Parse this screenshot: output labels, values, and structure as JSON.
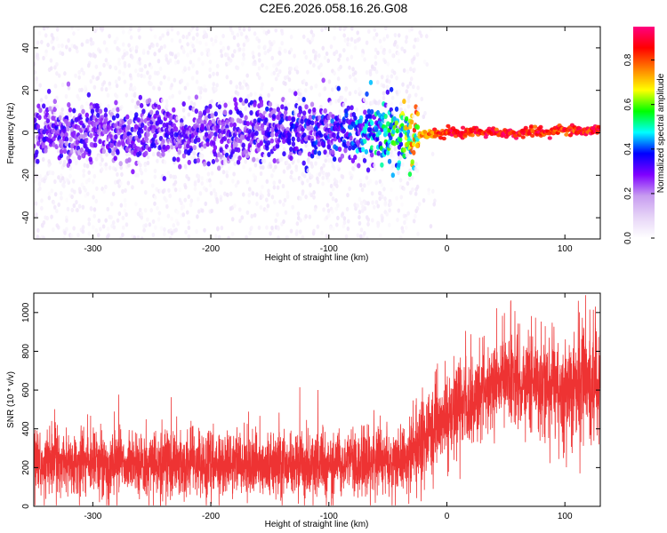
{
  "title": "C2E6.2026.058.16.26.G08",
  "colors": {
    "line": "#ee3333",
    "colormap": [
      "#ffffff",
      "#e6d4f7",
      "#c79cf0",
      "#7f00ff",
      "#0000ff",
      "#00ffff",
      "#00ff00",
      "#ffff00",
      "#ff8000",
      "#ff0000",
      "#ff0080"
    ]
  },
  "chart_data": [
    {
      "type": "heatmap",
      "title": "C2E6.2026.058.16.26.G08",
      "xlabel": "Height of straight line (km)",
      "ylabel": "Frequency (Hz)",
      "xlim": [
        -350,
        130
      ],
      "ylim": [
        -50,
        50
      ],
      "xticks": [
        -300,
        -200,
        -100,
        0,
        100
      ],
      "yticks": [
        -40,
        -20,
        0,
        20,
        40
      ],
      "grid": false,
      "colorbar": {
        "label": "Normalized spectral amplitude",
        "range": [
          0.0,
          0.95
        ],
        "ticks": [
          0.0,
          0.2,
          0.4,
          0.6,
          0.8
        ]
      },
      "description_series": [
        {
          "name": "dominant_frequency_ridge",
          "x": [
            -350,
            -300,
            -200,
            -100,
            -60,
            -40,
            -25,
            0,
            50,
            100,
            130
          ],
          "y": [
            0,
            0,
            0,
            0,
            0,
            -2,
            -1,
            0,
            0,
            1,
            1.5
          ]
        },
        {
          "name": "ridge_peak_amplitude",
          "x": [
            -350,
            -200,
            -100,
            -60,
            -40,
            -25,
            0,
            50,
            100,
            130
          ],
          "y": [
            0.3,
            0.3,
            0.35,
            0.45,
            0.55,
            0.75,
            0.9,
            0.9,
            0.88,
            0.9
          ]
        }
      ]
    },
    {
      "type": "line",
      "xlabel": "Height of straight line (km)",
      "ylabel": "SNR (10 * v/v)",
      "xlim": [
        -350,
        130
      ],
      "ylim": [
        0,
        1100
      ],
      "xticks": [
        -300,
        -200,
        -100,
        0,
        100
      ],
      "yticks": [
        0,
        200,
        400,
        600,
        800,
        1000
      ],
      "grid": false,
      "series": [
        {
          "name": "SNR",
          "x": [
            -350,
            -300,
            -250,
            -200,
            -150,
            -100,
            -50,
            -30,
            -20,
            -10,
            0,
            20,
            40,
            60,
            80,
            100,
            110,
            130
          ],
          "y": [
            220,
            220,
            220,
            215,
            215,
            220,
            240,
            270,
            350,
            420,
            480,
            560,
            640,
            650,
            620,
            600,
            640,
            650
          ],
          "spread": [
            120,
            120,
            120,
            120,
            120,
            120,
            130,
            140,
            160,
            170,
            170,
            170,
            170,
            160,
            170,
            200,
            210,
            200
          ]
        }
      ]
    }
  ]
}
